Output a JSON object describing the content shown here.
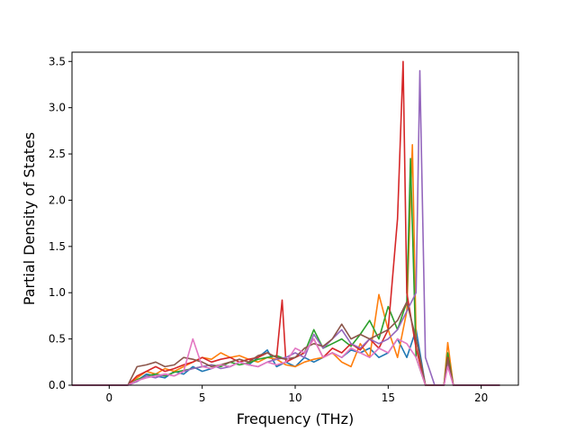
{
  "chart_data": {
    "type": "line",
    "title": "",
    "xlabel": "Frequency (THz)",
    "ylabel": "Partial Density of States",
    "xlim": [
      -2.0,
      22.0
    ],
    "ylim": [
      0.0,
      3.6
    ],
    "xticks": [
      0,
      5,
      10,
      15,
      20
    ],
    "xtick_labels": [
      "0",
      "5",
      "10",
      "15",
      "20"
    ],
    "yticks": [
      0.0,
      0.5,
      1.0,
      1.5,
      2.0,
      2.5,
      3.0,
      3.5
    ],
    "ytick_labels": [
      "0.0",
      "0.5",
      "1.0",
      "1.5",
      "2.0",
      "2.5",
      "3.0",
      "3.5"
    ],
    "grid": false,
    "legend": "none",
    "colors": [
      "#1f77b4",
      "#ff7f0e",
      "#2ca02c",
      "#d62728",
      "#9467bd",
      "#8c564b",
      "#e377c2"
    ],
    "series": [
      {
        "x": [
          -2.0,
          0.0,
          1.0,
          1.5,
          2.0,
          2.5,
          3.0,
          3.5,
          4.0,
          4.5,
          5.0,
          5.5,
          6.0,
          6.5,
          7.0,
          7.5,
          8.0,
          8.5,
          9.0,
          9.5,
          10.0,
          10.5,
          11.0,
          11.5,
          12.0,
          12.5,
          13.0,
          13.5,
          14.0,
          14.5,
          15.0,
          15.5,
          16.0,
          16.5,
          17.0,
          17.5,
          18.0,
          18.2,
          18.5,
          21.0
        ],
        "y": [
          0.0,
          0.0,
          0.0,
          0.05,
          0.12,
          0.1,
          0.08,
          0.15,
          0.12,
          0.2,
          0.15,
          0.18,
          0.22,
          0.2,
          0.25,
          0.22,
          0.3,
          0.38,
          0.2,
          0.25,
          0.2,
          0.3,
          0.25,
          0.3,
          0.35,
          0.3,
          0.38,
          0.35,
          0.4,
          0.3,
          0.35,
          0.5,
          0.3,
          0.6,
          0.0,
          0.0,
          0.0,
          0.3,
          0.0,
          0.0
        ]
      },
      {
        "x": [
          -2.0,
          0.0,
          1.0,
          1.5,
          2.0,
          2.5,
          3.0,
          3.5,
          4.0,
          4.5,
          5.0,
          5.5,
          6.0,
          6.5,
          7.0,
          7.5,
          8.0,
          8.5,
          9.0,
          9.5,
          10.0,
          10.5,
          11.0,
          11.5,
          12.0,
          12.5,
          13.0,
          13.5,
          14.0,
          14.5,
          15.0,
          15.5,
          16.0,
          16.3,
          16.5,
          17.0,
          17.5,
          18.0,
          18.2,
          18.5,
          21.0
        ],
        "y": [
          0.0,
          0.0,
          0.0,
          0.08,
          0.15,
          0.12,
          0.18,
          0.15,
          0.2,
          0.25,
          0.3,
          0.28,
          0.35,
          0.3,
          0.32,
          0.28,
          0.25,
          0.3,
          0.28,
          0.22,
          0.2,
          0.25,
          0.28,
          0.3,
          0.35,
          0.25,
          0.2,
          0.45,
          0.3,
          0.98,
          0.6,
          0.3,
          0.8,
          2.6,
          0.5,
          0.0,
          0.0,
          0.0,
          0.46,
          0.0,
          0.0
        ]
      },
      {
        "x": [
          -2.0,
          0.0,
          1.0,
          1.5,
          2.0,
          2.5,
          3.0,
          3.5,
          4.0,
          4.5,
          5.0,
          5.5,
          6.0,
          6.5,
          7.0,
          7.5,
          8.0,
          8.5,
          9.0,
          9.5,
          10.0,
          10.5,
          11.0,
          11.5,
          12.0,
          12.5,
          13.0,
          13.5,
          14.0,
          14.5,
          15.0,
          15.5,
          16.0,
          16.2,
          16.5,
          17.0,
          17.5,
          18.0,
          18.2,
          18.5,
          21.0
        ],
        "y": [
          0.0,
          0.0,
          0.0,
          0.06,
          0.1,
          0.12,
          0.1,
          0.14,
          0.16,
          0.18,
          0.2,
          0.22,
          0.2,
          0.25,
          0.22,
          0.24,
          0.28,
          0.3,
          0.32,
          0.28,
          0.3,
          0.35,
          0.6,
          0.4,
          0.45,
          0.5,
          0.42,
          0.55,
          0.7,
          0.5,
          0.85,
          0.6,
          0.9,
          2.45,
          0.3,
          0.0,
          0.0,
          0.0,
          0.35,
          0.0,
          0.0
        ]
      },
      {
        "x": [
          -2.0,
          0.0,
          1.0,
          1.5,
          2.0,
          2.5,
          3.0,
          3.5,
          4.0,
          4.5,
          5.0,
          5.5,
          6.0,
          6.5,
          7.0,
          7.5,
          8.0,
          8.5,
          9.0,
          9.3,
          9.5,
          10.0,
          10.5,
          11.0,
          11.5,
          12.0,
          12.5,
          13.0,
          13.5,
          14.0,
          14.5,
          15.0,
          15.5,
          15.8,
          16.0,
          16.5,
          17.0,
          17.5,
          18.0,
          18.2,
          18.5,
          21.0
        ],
        "y": [
          0.0,
          0.0,
          0.0,
          0.1,
          0.15,
          0.2,
          0.15,
          0.18,
          0.22,
          0.25,
          0.3,
          0.25,
          0.28,
          0.3,
          0.25,
          0.28,
          0.3,
          0.35,
          0.3,
          0.92,
          0.25,
          0.3,
          0.35,
          0.5,
          0.3,
          0.4,
          0.35,
          0.45,
          0.38,
          0.5,
          0.4,
          0.6,
          1.8,
          3.5,
          1.0,
          0.4,
          0.0,
          0.0,
          0.0,
          0.3,
          0.0,
          0.0
        ]
      },
      {
        "x": [
          -2.0,
          0.0,
          1.0,
          1.5,
          2.0,
          2.5,
          3.0,
          3.5,
          4.0,
          4.5,
          5.0,
          5.5,
          6.0,
          6.5,
          7.0,
          7.5,
          8.0,
          8.5,
          9.0,
          9.5,
          10.0,
          10.5,
          11.0,
          11.5,
          12.0,
          12.5,
          13.0,
          13.5,
          14.0,
          14.5,
          15.0,
          15.5,
          16.0,
          16.5,
          16.7,
          17.0,
          17.5,
          18.0,
          18.2,
          18.5,
          21.0
        ],
        "y": [
          0.0,
          0.0,
          0.0,
          0.04,
          0.1,
          0.08,
          0.12,
          0.1,
          0.15,
          0.18,
          0.2,
          0.22,
          0.18,
          0.2,
          0.25,
          0.22,
          0.2,
          0.25,
          0.28,
          0.3,
          0.35,
          0.3,
          0.55,
          0.4,
          0.5,
          0.6,
          0.45,
          0.4,
          0.5,
          0.45,
          0.5,
          0.6,
          0.8,
          1.0,
          3.4,
          0.3,
          0.0,
          0.0,
          0.25,
          0.0,
          0.0
        ]
      },
      {
        "x": [
          -2.0,
          0.0,
          1.0,
          1.5,
          2.0,
          2.5,
          3.0,
          3.5,
          4.0,
          4.5,
          5.0,
          5.5,
          6.0,
          6.5,
          7.0,
          7.5,
          8.0,
          8.5,
          9.0,
          9.5,
          10.0,
          10.5,
          11.0,
          11.5,
          12.0,
          12.5,
          13.0,
          13.5,
          14.0,
          14.5,
          15.0,
          15.5,
          16.0,
          16.5,
          17.0,
          17.5,
          18.0,
          18.2,
          18.5,
          21.0
        ],
        "y": [
          0.0,
          0.0,
          0.0,
          0.2,
          0.22,
          0.25,
          0.2,
          0.22,
          0.3,
          0.28,
          0.25,
          0.2,
          0.22,
          0.25,
          0.28,
          0.25,
          0.32,
          0.35,
          0.3,
          0.28,
          0.3,
          0.4,
          0.45,
          0.42,
          0.5,
          0.66,
          0.5,
          0.55,
          0.5,
          0.55,
          0.6,
          0.7,
          0.9,
          0.5,
          0.0,
          0.0,
          0.0,
          0.28,
          0.0,
          0.0
        ]
      },
      {
        "x": [
          -2.0,
          0.0,
          1.0,
          1.5,
          2.0,
          2.5,
          3.0,
          3.5,
          4.0,
          4.5,
          5.0,
          5.5,
          6.0,
          6.5,
          7.0,
          7.5,
          8.0,
          8.5,
          9.0,
          9.5,
          10.0,
          10.5,
          11.0,
          11.5,
          12.0,
          12.5,
          13.0,
          13.5,
          14.0,
          14.5,
          15.0,
          15.5,
          16.0,
          16.5,
          17.0,
          17.5,
          18.0,
          18.2,
          18.5,
          21.0
        ],
        "y": [
          0.0,
          0.0,
          0.0,
          0.05,
          0.08,
          0.1,
          0.12,
          0.1,
          0.15,
          0.5,
          0.2,
          0.18,
          0.22,
          0.2,
          0.25,
          0.22,
          0.2,
          0.25,
          0.22,
          0.25,
          0.4,
          0.35,
          0.5,
          0.3,
          0.35,
          0.3,
          0.4,
          0.35,
          0.3,
          0.4,
          0.35,
          0.5,
          0.45,
          0.3,
          0.0,
          0.0,
          0.0,
          0.2,
          0.0,
          0.0
        ]
      }
    ]
  }
}
